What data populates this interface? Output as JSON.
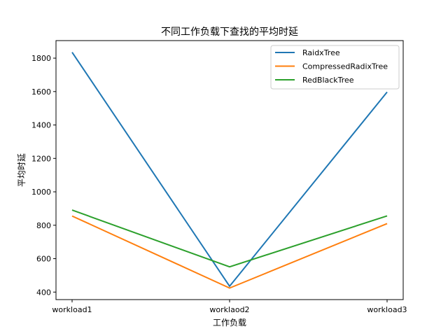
{
  "chart_data": {
    "type": "line",
    "title": "不同工作负载下查找的平均时延",
    "xlabel": "工作负载",
    "ylabel": "平均时延",
    "categories": [
      "workload1",
      "worklaod2",
      "workload3"
    ],
    "yticks": [
      400,
      600,
      800,
      1000,
      1200,
      1400,
      1600,
      1800
    ],
    "ylim": [
      355,
      1905
    ],
    "grid": false,
    "legend_position": "top-right",
    "series": [
      {
        "name": "RaidxTree",
        "color": "#1f77b4",
        "values": [
          1835,
          435,
          1597
        ]
      },
      {
        "name": "CompressedRadixTree",
        "color": "#ff7f0e",
        "values": [
          855,
          424,
          810
        ]
      },
      {
        "name": "RedBlackTree",
        "color": "#2ca02c",
        "values": [
          891,
          551,
          856
        ]
      }
    ]
  }
}
